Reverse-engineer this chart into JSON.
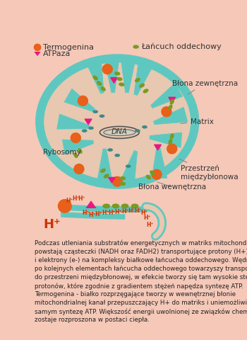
{
  "bg_color": "#f5c8b8",
  "teal": "#5ec8c0",
  "tan": "#e8c8b0",
  "orange": "#e8601a",
  "pink": "#e81880",
  "green": "#7a9a20",
  "blue_rib": "#408888",
  "label_color": "#333333",
  "legend_termogenina": "Termogenina",
  "legend_atpaza": "ATPaza",
  "legend_lancuch": "Łańcuch oddechowy",
  "label_blona_zew": "Błona zewnętrzna",
  "label_matrix": "Matrix",
  "label_rybosomy": "Rybosomy",
  "label_blona_wew": "Błona wewnętrzna",
  "label_dna": "DNA",
  "label_przestrzen": "Przestrzeń\nmiędzybłonowa",
  "description": "Podczas utleniania substratów energetycznych w matriks mitochondrium\npowstają cząsteczki (NADH oraz FADH2) transportujące protony (H+)\ni elektrony (e-) na kompleksy białkowe łańcucha oddechowego. Wędrówce e-\npo kolejnych elementach łańcucha oddechowego towarzyszy transport H+\ndo przestrzeni międzybłonowej, w efekcie tworzy się tam wysokie stężenie\nprotonów, które zgodnie z gradientem stężeń napędza syntezę ATP.\nTermogenina - białko rozprzęgające tworzy w wewnętrznej błonie\nmitochondrialnej kanał przepuszczający H+ do matriks i uniemożliwia tym\nsamym syntezę ATP. Większość energii uwolnionej ze związków chemicznych\nzostaje rozproszona w postaci ciepła."
}
